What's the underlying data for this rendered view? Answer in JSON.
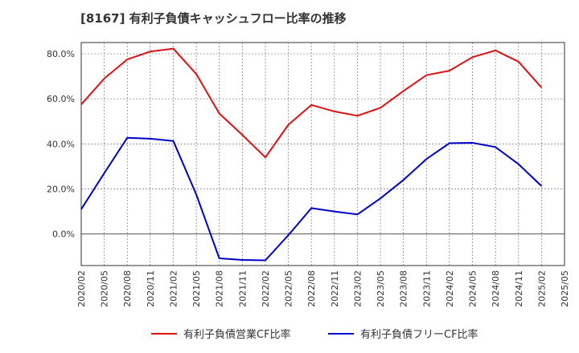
{
  "chart_data": {
    "type": "line",
    "title": "[8167]  有利子負債キャッシュフロー比率の推移",
    "x": [
      "2020/02",
      "2020/05",
      "2020/08",
      "2020/11",
      "2021/02",
      "2021/05",
      "2021/08",
      "2021/11",
      "2022/02",
      "2022/05",
      "2022/08",
      "2022/11",
      "2023/02",
      "2023/05",
      "2023/08",
      "2023/11",
      "2024/02",
      "2024/05",
      "2024/08",
      "2024/11",
      "2025/02",
      "2025/05"
    ],
    "ylim": [
      -14,
      85
    ],
    "yticks": [
      0,
      20,
      40,
      60,
      80
    ],
    "ytick_labels": [
      "0.0%",
      "20.0%",
      "40.0%",
      "60.0%",
      "80.0%"
    ],
    "grid": true,
    "legend_position": "bottom",
    "series": [
      {
        "name": "有利子負債営業CF比率",
        "color": "#dd1111",
        "values": [
          57.5,
          69,
          77.5,
          81,
          82.3,
          71,
          53.5,
          44,
          34,
          48.5,
          57.3,
          54.4,
          52.5,
          56,
          63.5,
          70.5,
          72.5,
          78.5,
          81.5,
          76.5,
          65,
          null
        ]
      },
      {
        "name": "有利子負債フリーCF比率",
        "color": "#0000cc",
        "values": [
          11,
          27,
          42.7,
          42.3,
          41.3,
          17.5,
          -10.8,
          -11.5,
          -11.7,
          -0.5,
          11.5,
          10,
          8.7,
          15.8,
          24,
          33.3,
          40.3,
          40.5,
          38.6,
          31,
          21.3,
          null
        ]
      }
    ]
  }
}
